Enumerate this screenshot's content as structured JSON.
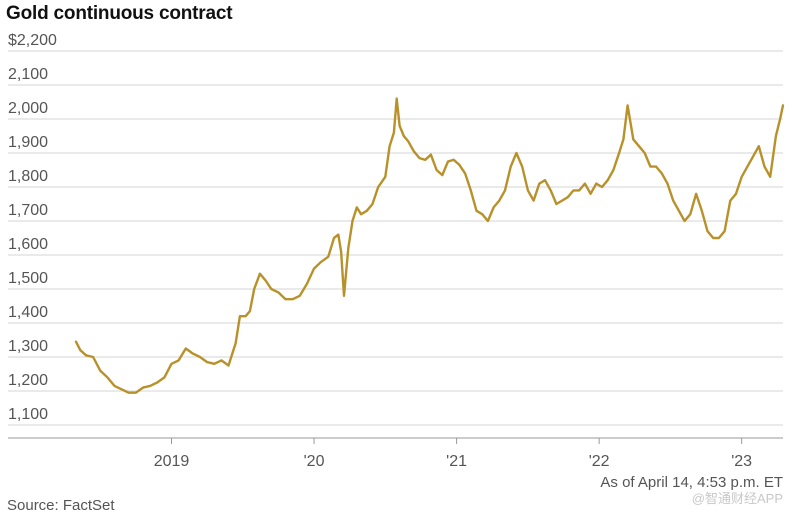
{
  "chart_data": {
    "type": "line",
    "title": "Gold continuous contract",
    "xlabel": "",
    "ylabel": "",
    "y_unit_prefix": "$",
    "ylim": [
      1100,
      2200
    ],
    "y_ticks": [
      1100,
      1200,
      1300,
      1400,
      1500,
      1600,
      1700,
      1800,
      1900,
      2000,
      2100,
      2200
    ],
    "y_tick_labels": [
      "1,100",
      "1,200",
      "1,300",
      "1,400",
      "1,500",
      "1,600",
      "1,700",
      "1,800",
      "1,900",
      "2,000",
      "2,100",
      "$2,200"
    ],
    "xlim": [
      2018.33,
      2023.29
    ],
    "x_ticks": [
      2019,
      2020,
      2021,
      2022,
      2023
    ],
    "x_tick_labels": [
      "2019",
      "'20",
      "'21",
      "'22",
      "'23"
    ],
    "grid": true,
    "line_color": "#b8912a",
    "series": [
      {
        "name": "Gold continuous contract",
        "x": [
          2018.33,
          2018.36,
          2018.4,
          2018.45,
          2018.5,
          2018.55,
          2018.6,
          2018.65,
          2018.7,
          2018.75,
          2018.8,
          2018.85,
          2018.9,
          2018.95,
          2019.0,
          2019.05,
          2019.1,
          2019.15,
          2019.2,
          2019.25,
          2019.3,
          2019.35,
          2019.4,
          2019.45,
          2019.48,
          2019.52,
          2019.55,
          2019.58,
          2019.62,
          2019.66,
          2019.7,
          2019.75,
          2019.8,
          2019.85,
          2019.9,
          2019.95,
          2020.0,
          2020.05,
          2020.1,
          2020.14,
          2020.17,
          2020.19,
          2020.21,
          2020.24,
          2020.27,
          2020.3,
          2020.33,
          2020.37,
          2020.41,
          2020.45,
          2020.5,
          2020.53,
          2020.56,
          2020.58,
          2020.6,
          2020.63,
          2020.66,
          2020.7,
          2020.74,
          2020.78,
          2020.82,
          2020.86,
          2020.9,
          2020.94,
          2020.98,
          2021.02,
          2021.06,
          2021.1,
          2021.14,
          2021.18,
          2021.22,
          2021.26,
          2021.3,
          2021.34,
          2021.38,
          2021.42,
          2021.46,
          2021.5,
          2021.54,
          2021.58,
          2021.62,
          2021.66,
          2021.7,
          2021.74,
          2021.78,
          2021.82,
          2021.86,
          2021.9,
          2021.94,
          2021.98,
          2022.02,
          2022.06,
          2022.1,
          2022.14,
          2022.17,
          2022.2,
          2022.24,
          2022.28,
          2022.32,
          2022.36,
          2022.4,
          2022.44,
          2022.48,
          2022.52,
          2022.56,
          2022.6,
          2022.64,
          2022.68,
          2022.72,
          2022.76,
          2022.8,
          2022.84,
          2022.88,
          2022.92,
          2022.96,
          2023.0,
          2023.04,
          2023.08,
          2023.12,
          2023.16,
          2023.2,
          2023.24,
          2023.27,
          2023.29
        ],
        "values": [
          1345,
          1320,
          1305,
          1300,
          1260,
          1240,
          1215,
          1205,
          1195,
          1195,
          1210,
          1215,
          1225,
          1240,
          1280,
          1290,
          1325,
          1310,
          1300,
          1285,
          1280,
          1290,
          1275,
          1340,
          1420,
          1420,
          1435,
          1500,
          1545,
          1525,
          1500,
          1490,
          1470,
          1470,
          1480,
          1515,
          1560,
          1580,
          1595,
          1650,
          1660,
          1610,
          1480,
          1620,
          1700,
          1740,
          1720,
          1730,
          1750,
          1800,
          1830,
          1920,
          1960,
          2060,
          1980,
          1950,
          1935,
          1905,
          1885,
          1880,
          1895,
          1850,
          1835,
          1875,
          1880,
          1865,
          1840,
          1790,
          1730,
          1720,
          1700,
          1740,
          1760,
          1790,
          1860,
          1900,
          1860,
          1790,
          1760,
          1810,
          1820,
          1790,
          1750,
          1760,
          1770,
          1790,
          1790,
          1810,
          1780,
          1810,
          1800,
          1820,
          1850,
          1900,
          1940,
          2040,
          1940,
          1920,
          1900,
          1860,
          1860,
          1840,
          1810,
          1760,
          1730,
          1700,
          1720,
          1780,
          1730,
          1670,
          1650,
          1650,
          1670,
          1760,
          1780,
          1830,
          1860,
          1890,
          1920,
          1860,
          1830,
          1950,
          2000,
          2040
        ]
      }
    ]
  },
  "annotations": {
    "as_of": "As of April 14, 4:53 p.m. ET",
    "source": "Source: FactSet",
    "watermark": "@智通财经APP"
  }
}
